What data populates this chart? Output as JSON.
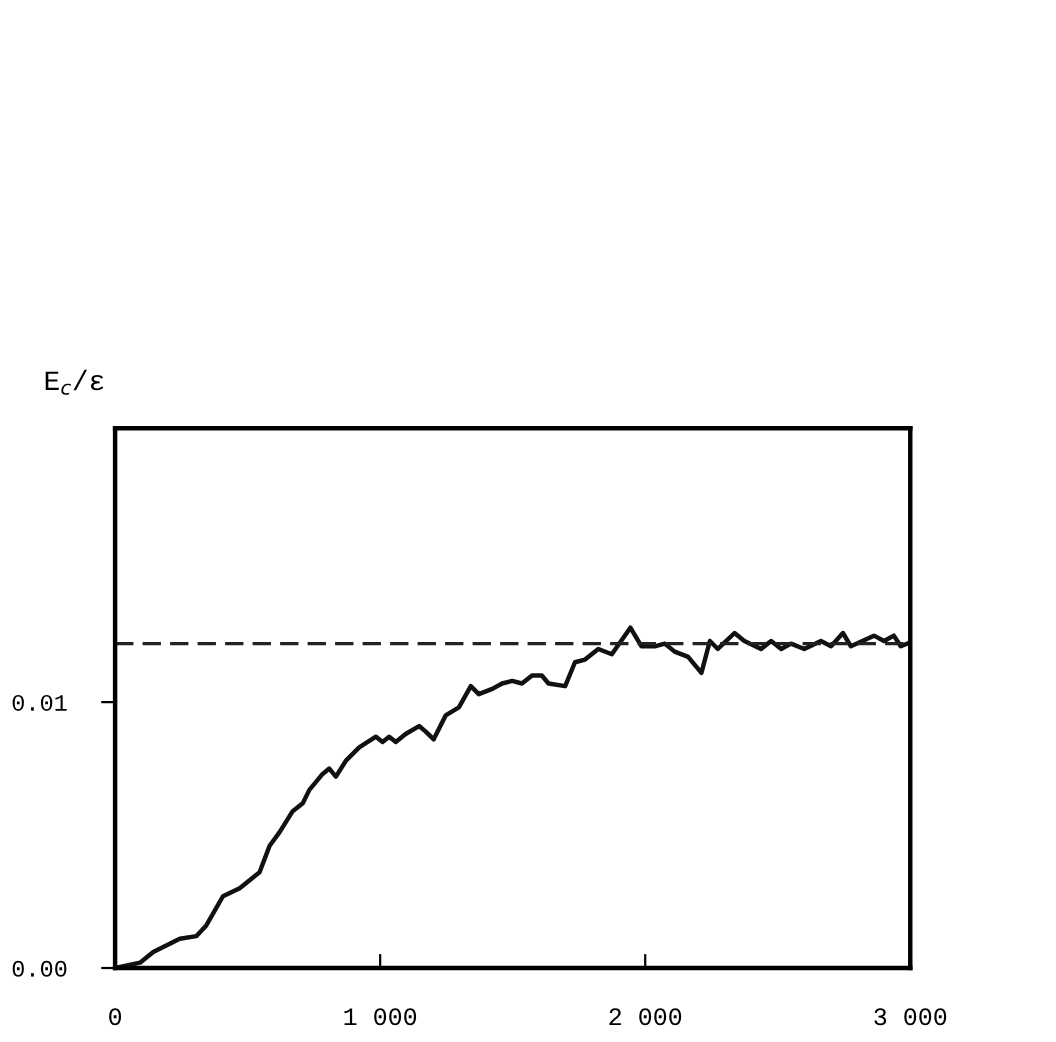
{
  "chart_data": {
    "type": "line",
    "ylabel": "E$_{c}$/ε",
    "x": [
      0,
      94,
      144,
      244,
      307,
      344,
      407,
      470,
      545,
      583,
      620,
      670,
      708,
      733,
      783,
      808,
      833,
      871,
      921,
      984,
      1009,
      1034,
      1059,
      1096,
      1147,
      1171,
      1202,
      1247,
      1297,
      1342,
      1372,
      1423,
      1460,
      1498,
      1535,
      1573,
      1610,
      1635,
      1698,
      1735,
      1773,
      1823,
      1874,
      1944,
      1986,
      2036,
      2074,
      2111,
      2162,
      2212,
      2244,
      2274,
      2337,
      2374,
      2437,
      2475,
      2513,
      2550,
      2600,
      2663,
      2701,
      2746,
      2776,
      2863,
      2901,
      2938,
      2964,
      2989
    ],
    "series": [
      {
        "color": "#111111",
        "values": [
          0,
          0.0002,
          0.0006,
          0.0011,
          0.0012,
          0.0016,
          0.0027,
          0.003,
          0.0036,
          0.0046,
          0.0051,
          0.0059,
          0.0062,
          0.0067,
          0.0073,
          0.0075,
          0.0072,
          0.0078,
          0.0083,
          0.0087,
          0.0085,
          0.0087,
          0.0085,
          0.0088,
          0.0091,
          0.0089,
          0.0086,
          0.0095,
          0.0098,
          0.0106,
          0.0103,
          0.0105,
          0.0107,
          0.0108,
          0.0107,
          0.011,
          0.011,
          0.0107,
          0.0106,
          0.0115,
          0.0116,
          0.012,
          0.0118,
          0.0128,
          0.0121,
          0.0121,
          0.0122,
          0.0119,
          0.0117,
          0.0111,
          0.0123,
          0.012,
          0.0126,
          0.0123,
          0.012,
          0.0123,
          0.012,
          0.0122,
          0.012,
          0.0123,
          0.0121,
          0.0126,
          0.0121,
          0.0125,
          0.0123,
          0.0125,
          0.0121,
          0.0122
        ]
      }
    ],
    "xlim": [
      0,
      3000
    ],
    "ylim": [
      0,
      0.0203
    ],
    "xticks": [
      0,
      {
        "value": 1000,
        "label": "1 000"
      },
      {
        "value": 2000,
        "label": "2 000"
      },
      {
        "value": 3000,
        "label": "3 000"
      }
    ],
    "yticks": [
      {
        "value": 0,
        "label": "0.00"
      },
      {
        "value": 0.01,
        "label": "0.01"
      }
    ],
    "ref_lines": [
      {
        "axis": "y",
        "value": 0.0122,
        "color": "#222222",
        "line_style": "dashed"
      }
    ],
    "grid": false,
    "legend": false,
    "marker": "none",
    "line_style": "solid"
  }
}
